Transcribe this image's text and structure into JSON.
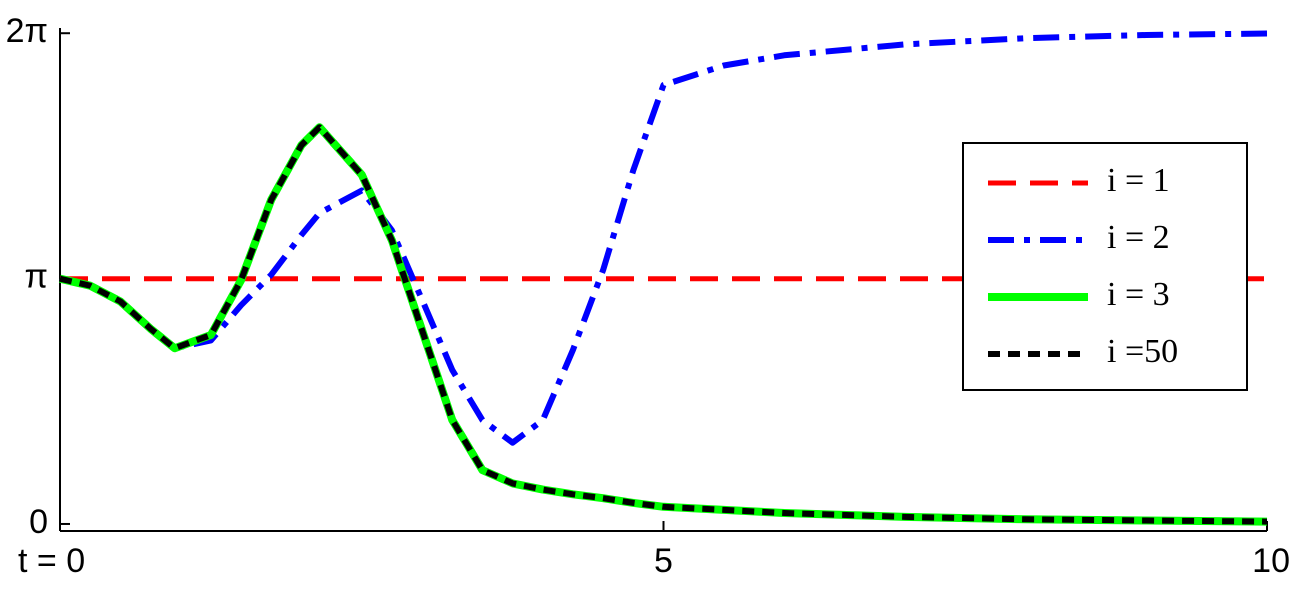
{
  "chart_data": {
    "type": "line",
    "x": [
      0,
      0.25,
      0.5,
      0.75,
      0.95,
      1.25,
      1.5,
      1.75,
      2,
      2.15,
      2.5,
      2.75,
      3,
      3.25,
      3.5,
      3.75,
      4,
      4.25,
      4.5,
      4.75,
      5,
      5.5,
      6,
      7,
      8,
      9,
      10
    ],
    "series": [
      {
        "name": "i = 1",
        "color": "#ff0000",
        "style": "dashed",
        "values": [
          3.14,
          3.14,
          3.14,
          3.14,
          3.14,
          3.14,
          3.14,
          3.14,
          3.14,
          3.14,
          3.14,
          3.14,
          3.14,
          3.14,
          3.14,
          3.14,
          3.14,
          3.14,
          3.14,
          3.14,
          3.14,
          3.14,
          3.14,
          3.14,
          3.14,
          3.14,
          3.14
        ]
      },
      {
        "name": "i = 2",
        "color": "#0000ff",
        "style": "dashdot",
        "values": [
          3.14,
          3.05,
          2.85,
          2.5,
          2.25,
          2.35,
          2.8,
          3.19,
          3.7,
          3.98,
          4.27,
          3.76,
          2.87,
          1.97,
          1.33,
          1.04,
          1.33,
          2.23,
          3.25,
          4.53,
          5.62,
          5.87,
          6.0,
          6.14,
          6.22,
          6.26,
          6.28
        ]
      },
      {
        "name": "i = 3",
        "color": "#00ff00",
        "style": "solid",
        "values": [
          3.14,
          3.05,
          2.85,
          2.5,
          2.25,
          2.42,
          3.12,
          4.15,
          4.85,
          5.08,
          4.47,
          3.63,
          2.48,
          1.33,
          0.69,
          0.52,
          0.44,
          0.38,
          0.33,
          0.27,
          0.22,
          0.18,
          0.14,
          0.09,
          0.06,
          0.045,
          0.03
        ]
      },
      {
        "name": "i =50",
        "color": "#000000",
        "style": "dotted",
        "values": [
          3.14,
          3.05,
          2.85,
          2.5,
          2.25,
          2.42,
          3.12,
          4.15,
          4.85,
          5.08,
          4.47,
          3.63,
          2.48,
          1.33,
          0.69,
          0.52,
          0.44,
          0.38,
          0.33,
          0.27,
          0.22,
          0.18,
          0.14,
          0.09,
          0.06,
          0.045,
          0.03
        ]
      }
    ],
    "xlim": [
      0,
      10
    ],
    "xticks": [
      {
        "value": 0,
        "label": "t = 0"
      },
      5,
      10
    ],
    "ylim": [
      -0.09,
      6.35
    ],
    "yticks": [
      0,
      {
        "value": 3.14159,
        "label": "π"
      },
      {
        "value": 6.28319,
        "label": "2π"
      }
    ],
    "legend": "right"
  }
}
